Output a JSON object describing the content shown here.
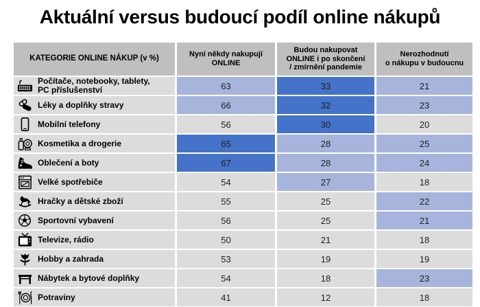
{
  "title": "Aktuální versus budoucí podíl online nákupů",
  "table": {
    "headers": {
      "category": "KATEGORIE ONLINE NÁKUP (v %)",
      "col1": "Nyní někdy nakupují\nONLINE",
      "col2": "Budou nakupovat\nONLINE i po skončení\n/ zmírnění pandemie",
      "col3": "Nerozhodnutí\no nákupu v budoucnu"
    },
    "rows": [
      {
        "icon": "keyboard-icon",
        "label": "Počítače, notebooky, tablety,\nPC příslušenství",
        "values": [
          63,
          33,
          21
        ],
        "highlights": [
          "light",
          "dark",
          "light"
        ]
      },
      {
        "icon": "pills-icon",
        "label": "Léky a doplňky stravy",
        "values": [
          66,
          32,
          23
        ],
        "highlights": [
          "light",
          "dark",
          "light"
        ]
      },
      {
        "icon": "smartphone-icon",
        "label": "Mobilní telefony",
        "values": [
          56,
          30,
          20
        ],
        "highlights": [
          "plain",
          "dark",
          "plain"
        ]
      },
      {
        "icon": "cosmetics-icon",
        "label": "Kosmetika a drogerie",
        "values": [
          65,
          28,
          25
        ],
        "highlights": [
          "dark",
          "light",
          "light"
        ]
      },
      {
        "icon": "sneaker-icon",
        "label": "Oblečení a boty",
        "values": [
          67,
          28,
          24
        ],
        "highlights": [
          "dark",
          "light",
          "light"
        ]
      },
      {
        "icon": "appliance-icon",
        "label": "Velké spotřebiče",
        "values": [
          54,
          27,
          18
        ],
        "highlights": [
          "plain",
          "light",
          "plain"
        ]
      },
      {
        "icon": "rocking-horse-icon",
        "label": "Hračky a dětské zboží",
        "values": [
          55,
          25,
          22
        ],
        "highlights": [
          "plain",
          "plain",
          "light"
        ]
      },
      {
        "icon": "soccer-ball-icon",
        "label": "Sportovní vybavení",
        "values": [
          56,
          25,
          21
        ],
        "highlights": [
          "plain",
          "plain",
          "light"
        ]
      },
      {
        "icon": "tv-icon",
        "label": "Televize, rádio",
        "values": [
          50,
          21,
          18
        ],
        "highlights": [
          "plain",
          "plain",
          "plain"
        ]
      },
      {
        "icon": "tulip-icon",
        "label": "Hobby a zahrada",
        "values": [
          53,
          19,
          19
        ],
        "highlights": [
          "plain",
          "plain",
          "plain"
        ]
      },
      {
        "icon": "table-icon",
        "label": "Nábytek a bytové doplňky",
        "values": [
          54,
          18,
          23
        ],
        "highlights": [
          "plain",
          "plain",
          "light"
        ]
      },
      {
        "icon": "dining-icon",
        "label": "Potraviny",
        "values": [
          41,
          12,
          18
        ],
        "highlights": [
          "plain",
          "plain",
          "plain"
        ]
      }
    ]
  },
  "colors": {
    "dark_blue": "#4573C9",
    "light_blue": "#A7B5DC",
    "row_gray": "#DCDCDC",
    "header_gray": "#BFBFBF",
    "text": "#000000"
  },
  "chart_data": {
    "type": "table",
    "title": "Aktuální versus budoucí podíl online nákupů",
    "unit": "%",
    "categories": [
      "Počítače, notebooky, tablety, PC příslušenství",
      "Léky a doplňky stravy",
      "Mobilní telefony",
      "Kosmetika a drogerie",
      "Oblečení a boty",
      "Velké spotřebiče",
      "Hračky a dětské zboží",
      "Sportovní vybavení",
      "Televize, rádio",
      "Hobby a zahrada",
      "Nábytek a bytové doplňky",
      "Potraviny"
    ],
    "series": [
      {
        "name": "Nyní někdy nakupují ONLINE",
        "values": [
          63,
          66,
          56,
          65,
          67,
          54,
          55,
          56,
          50,
          53,
          54,
          41
        ]
      },
      {
        "name": "Budou nakupovat ONLINE i po skončení / zmírnění pandemie",
        "values": [
          33,
          32,
          30,
          28,
          28,
          27,
          25,
          25,
          21,
          19,
          18,
          12
        ]
      },
      {
        "name": "Nerozhodnutí o nákupu v budoucnu",
        "values": [
          21,
          23,
          20,
          25,
          24,
          18,
          22,
          21,
          18,
          19,
          23,
          18
        ]
      }
    ]
  }
}
